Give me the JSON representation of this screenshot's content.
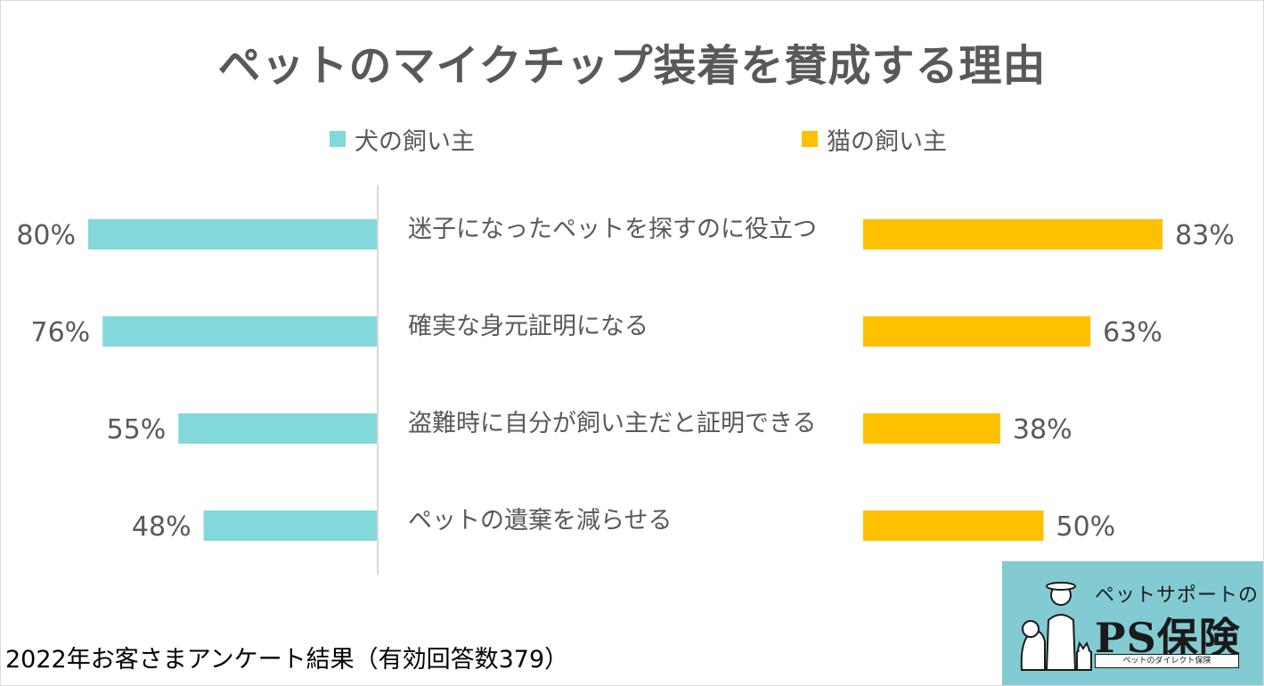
{
  "chart_data": {
    "type": "bar",
    "title": "ペットのマイクチップ装着を賛成する理由",
    "orientation": "horizontal-butterfly",
    "categories": [
      "迷子になったペットを探すのに役立つ",
      "確実な身元証明になる",
      "盗難時に自分が飼い主だと証明できる",
      "ペットの遺棄を減らせる"
    ],
    "series": [
      {
        "name": "犬の飼い主",
        "color": "#82d8da",
        "values": [
          80,
          76,
          55,
          48
        ],
        "labels": [
          "80%",
          "76%",
          "55%",
          "48%"
        ]
      },
      {
        "name": "猫の飼い主",
        "color": "#ffc000",
        "values": [
          83,
          63,
          38,
          50
        ],
        "labels": [
          "83%",
          "63%",
          "38%",
          "50%"
        ]
      }
    ],
    "unit": "%",
    "legend": "top",
    "grid": false
  },
  "footer": {
    "note": "2022年お客さまアンケート結果（有効回答数379）"
  },
  "logo": {
    "tagline": "ペットサポートの",
    "wordmark": "PS保険",
    "subline": "ペットのダイレクト保険"
  }
}
